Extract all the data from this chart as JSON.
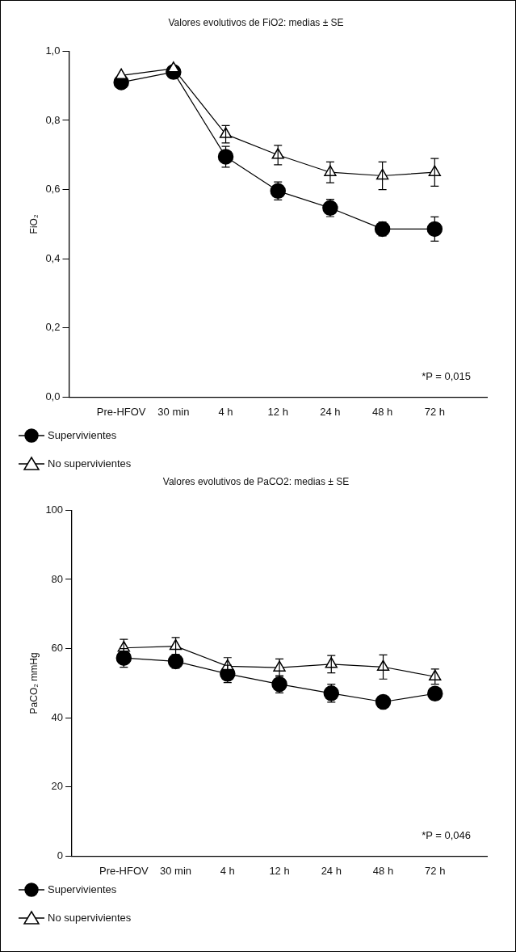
{
  "chart_data": [
    {
      "type": "line",
      "title": "Valores evolutivos de FiO2: medias ± SE",
      "ylabel": "FiO₂",
      "categories": [
        "Pre-HFOV",
        "30 min",
        "4 h",
        "12 h",
        "24 h",
        "48 h",
        "72 h"
      ],
      "series": [
        {
          "name": "Supervivientes",
          "color": "#000000",
          "marker": "circle",
          "values": [
            0.91,
            0.94,
            0.695,
            0.596,
            0.547,
            0.486,
            0.486
          ],
          "errors": [
            null,
            null,
            0.03,
            0.026,
            0.025,
            0.02,
            0.035
          ]
        },
        {
          "name": "No supervivientes",
          "color": "#000000",
          "marker": "triangle",
          "values": [
            0.93,
            0.95,
            0.76,
            0.7,
            0.65,
            0.64,
            0.65
          ],
          "errors": [
            null,
            null,
            0.025,
            0.028,
            0.03,
            0.04,
            0.04
          ]
        }
      ],
      "ylim": [
        0,
        1
      ],
      "yticks": [
        {
          "value": 0,
          "label": "0,0"
        },
        {
          "value": 0.2,
          "label": "0,2"
        },
        {
          "value": 0.4,
          "label": "0,4"
        },
        {
          "value": 0.6,
          "label": "0,6"
        },
        {
          "value": 0.8,
          "label": "0,8"
        },
        {
          "value": 1,
          "label": "1,0"
        }
      ],
      "annotations": [
        "*P = 0,015"
      ],
      "legend": "bottom left",
      "grid": false
    },
    {
      "type": "line",
      "title": "Valores evolutivos de PaCO2: medias ± SE",
      "ylabel": "PaCO₂ mmHg",
      "categories": [
        "Pre-HFOV",
        "30 min",
        "4 h",
        "12 h",
        "24 h",
        "48 h",
        "72 h"
      ],
      "series": [
        {
          "name": "Supervivientes",
          "color": "#000000",
          "marker": "circle",
          "values": [
            57.3,
            56.3,
            52.7,
            49.7,
            47.1,
            44.6,
            47.0
          ],
          "errors": [
            2.7,
            2,
            2.5,
            2.5,
            2.6,
            null,
            null
          ]
        },
        {
          "name": "No supervivientes",
          "color": "#000000",
          "marker": "triangle",
          "values": [
            60.2,
            60.7,
            54.9,
            54.5,
            55.5,
            54.7,
            51.9
          ],
          "errors": [
            2.5,
            2.5,
            2.5,
            2.5,
            2.5,
            3.5,
            2.2
          ]
        }
      ],
      "ylim": [
        0,
        100
      ],
      "yticks": [
        0,
        20,
        40,
        60,
        80,
        100
      ],
      "annotations": [
        "*P = 0,046"
      ],
      "legend": "bottom left",
      "grid": false
    }
  ]
}
